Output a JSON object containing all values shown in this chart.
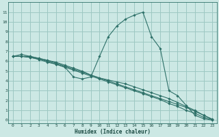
{
  "xlabel": "Humidex (Indice chaleur)",
  "bg_color": "#cce8e4",
  "grid_color": "#9dc8c2",
  "line_color": "#2d7068",
  "xlim": [
    -0.5,
    23.5
  ],
  "ylim": [
    -0.3,
    12
  ],
  "xticks": [
    0,
    1,
    2,
    3,
    4,
    5,
    6,
    7,
    8,
    9,
    10,
    11,
    12,
    13,
    14,
    15,
    16,
    17,
    18,
    19,
    20,
    21,
    22,
    23
  ],
  "yticks": [
    0,
    1,
    2,
    3,
    4,
    5,
    6,
    7,
    8,
    9,
    10,
    11
  ],
  "series": [
    [
      6.5,
      6.5,
      6.5,
      6.3,
      6.1,
      5.8,
      5.5,
      5.2,
      4.9,
      4.6,
      4.3,
      4.0,
      3.7,
      3.4,
      3.1,
      2.8,
      2.5,
      2.2,
      1.9,
      1.6,
      1.3,
      0.9,
      0.5,
      0.1
    ],
    [
      6.5,
      6.7,
      6.5,
      6.3,
      6.1,
      5.9,
      5.6,
      5.3,
      5.0,
      4.6,
      4.3,
      4.1,
      3.9,
      3.7,
      3.4,
      3.1,
      2.8,
      2.5,
      2.2,
      1.8,
      1.4,
      1.0,
      0.5,
      0.1
    ],
    [
      6.5,
      6.5,
      6.4,
      6.2,
      5.9,
      5.7,
      5.4,
      5.1,
      4.8,
      4.5,
      4.2,
      3.9,
      3.6,
      3.3,
      3.0,
      2.7,
      2.4,
      2.1,
      1.7,
      1.4,
      1.0,
      0.7,
      0.3,
      0.05
    ],
    [
      6.5,
      6.5,
      6.4,
      6.2,
      6.0,
      5.7,
      5.4,
      4.4,
      4.2,
      4.4,
      6.5,
      8.5,
      9.6,
      10.3,
      10.7,
      11.0,
      8.5,
      7.3,
      3.0,
      2.5,
      1.5,
      0.5,
      0.15,
      0.0
    ]
  ]
}
